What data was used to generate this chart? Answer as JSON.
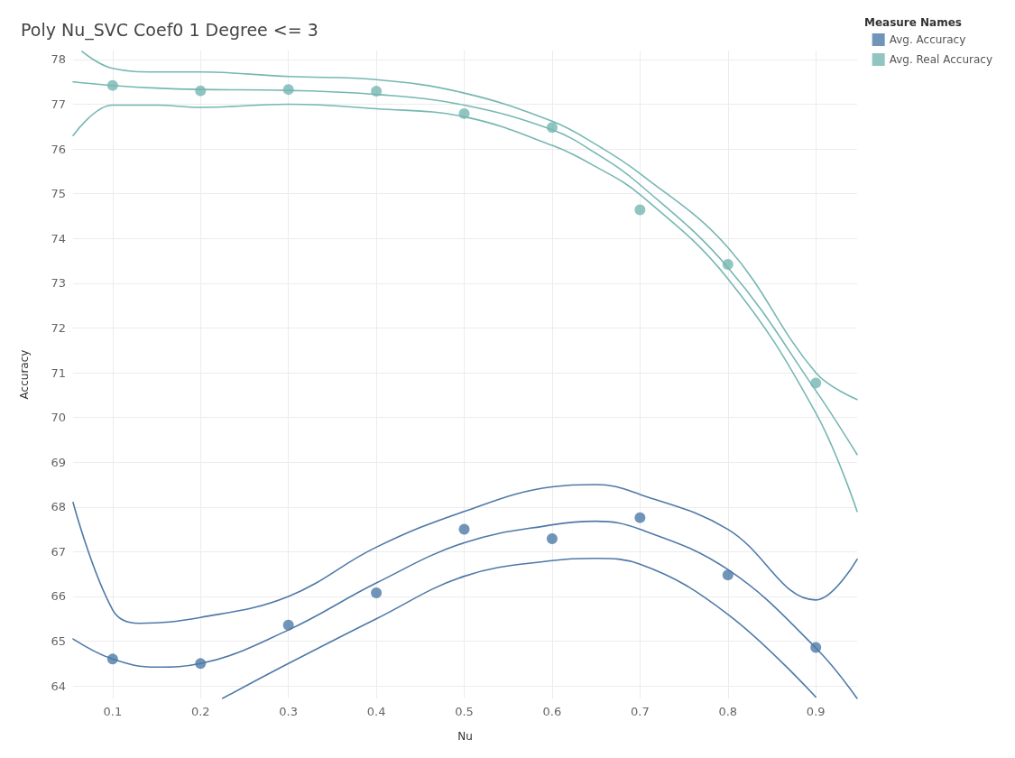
{
  "chart_data": {
    "type": "scatter",
    "title": "Poly Nu_SVC Coef0 1 Degree <= 3",
    "xlabel": "Nu",
    "ylabel": "Accuracy",
    "legend_title": "Measure Names",
    "x": [
      0.1,
      0.2,
      0.3,
      0.4,
      0.5,
      0.6,
      0.7,
      0.8,
      0.9
    ],
    "series": [
      {
        "name": "Avg. Accuracy",
        "color": "#4e79a7",
        "values": [
          64.6,
          64.5,
          65.36,
          66.08,
          67.5,
          67.29,
          67.76,
          66.48,
          64.86
        ]
      },
      {
        "name": "Avg. Real Accuracy",
        "color": "#76b7b2",
        "values": [
          77.42,
          77.3,
          77.33,
          77.29,
          76.79,
          76.48,
          74.64,
          73.42,
          70.77
        ]
      },
      {
        "type": "line",
        "marker": "none",
        "color": "#4e79a7",
        "x": [
          0.055,
          0.1,
          0.15,
          0.2,
          0.3,
          0.4,
          0.5,
          0.6,
          0.65,
          0.7,
          0.8,
          0.9,
          0.947
        ],
        "values": [
          65.05,
          64.6,
          64.42,
          64.5,
          65.25,
          66.3,
          67.2,
          67.6,
          67.68,
          67.5,
          66.6,
          64.85,
          63.72
        ]
      },
      {
        "type": "line",
        "marker": "none",
        "color": "#4e79a7",
        "x": [
          0.055,
          0.1,
          0.13,
          0.2,
          0.3,
          0.4,
          0.5,
          0.6,
          0.65,
          0.7,
          0.8,
          0.9,
          0.947
        ],
        "values": [
          68.1,
          65.7,
          65.4,
          65.53,
          66.0,
          67.1,
          67.9,
          68.45,
          68.5,
          68.28,
          67.5,
          65.92,
          66.83
        ]
      },
      {
        "type": "line",
        "marker": "none",
        "color": "#4e79a7",
        "x": [
          0.225,
          0.3,
          0.4,
          0.5,
          0.6,
          0.65,
          0.7,
          0.8,
          0.9
        ],
        "values": [
          63.72,
          64.5,
          65.5,
          66.45,
          66.8,
          66.85,
          66.72,
          65.6,
          63.75
        ]
      },
      {
        "type": "line",
        "marker": "none",
        "color": "#76b7b2",
        "x": [
          0.055,
          0.1,
          0.15,
          0.2,
          0.3,
          0.4,
          0.5,
          0.6,
          0.65,
          0.7,
          0.8,
          0.9,
          0.947
        ],
        "values": [
          77.5,
          77.42,
          77.36,
          77.33,
          77.31,
          77.22,
          76.98,
          76.43,
          75.9,
          75.2,
          73.35,
          70.6,
          69.17
        ]
      },
      {
        "type": "line",
        "marker": "none",
        "color": "#76b7b2",
        "x": [
          0.065,
          0.1,
          0.15,
          0.2,
          0.3,
          0.4,
          0.5,
          0.6,
          0.65,
          0.7,
          0.8,
          0.9,
          0.947
        ],
        "values": [
          78.18,
          77.8,
          77.72,
          77.72,
          77.62,
          77.55,
          77.25,
          76.62,
          76.1,
          75.45,
          73.8,
          71.0,
          70.4
        ]
      },
      {
        "type": "line",
        "marker": "none",
        "color": "#76b7b2",
        "x": [
          0.055,
          0.1,
          0.15,
          0.2,
          0.3,
          0.4,
          0.5,
          0.6,
          0.65,
          0.7,
          0.8,
          0.9,
          0.947
        ],
        "values": [
          76.3,
          76.98,
          76.98,
          76.93,
          77.0,
          76.9,
          76.72,
          76.08,
          75.6,
          74.98,
          73.1,
          70.1,
          67.9
        ]
      }
    ],
    "xlim": [
      0.055,
      0.947
    ],
    "xticks": [
      0.1,
      0.2,
      0.3,
      0.4,
      0.5,
      0.6,
      0.7,
      0.8,
      0.9
    ],
    "ylim": [
      63.72,
      78.2
    ],
    "yticks": [
      64,
      65,
      66,
      67,
      68,
      69,
      70,
      71,
      72,
      73,
      74,
      75,
      76,
      77,
      78
    ],
    "grid": true,
    "legend": "top right",
    "marker": "circle",
    "line_style": "solid"
  }
}
